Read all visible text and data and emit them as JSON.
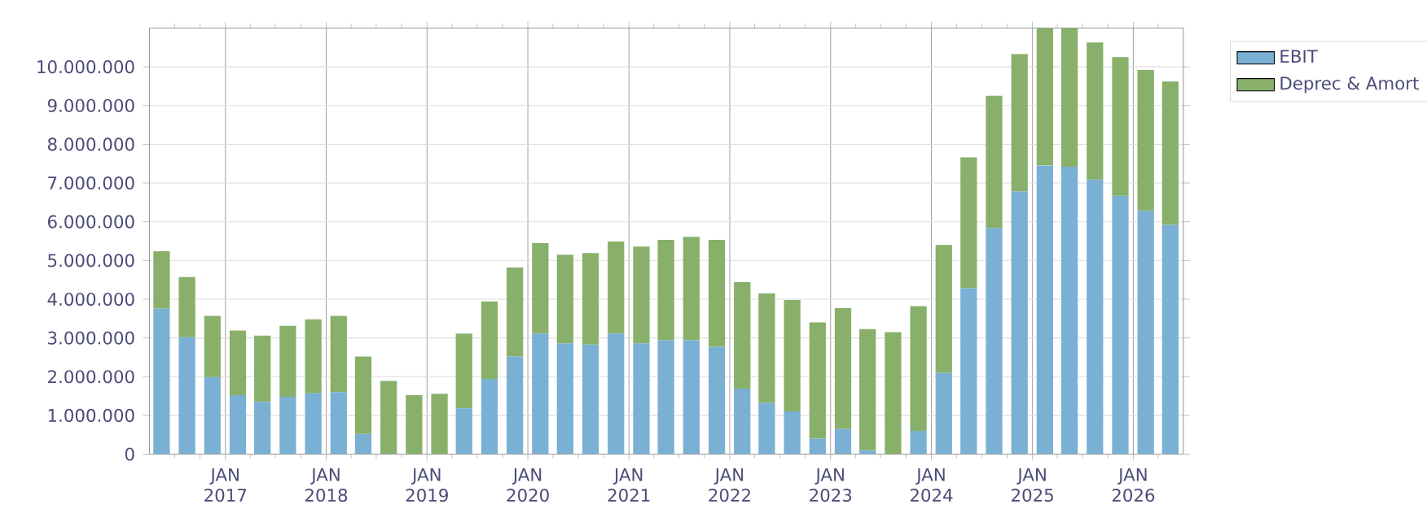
{
  "chart_data": {
    "type": "bar",
    "stacked": true,
    "x": [
      "2016-05-15",
      "2016-08-15",
      "2016-11-15",
      "2017-02-15",
      "2017-05-15",
      "2017-08-15",
      "2017-11-15",
      "2018-02-15",
      "2018-05-15",
      "2018-08-15",
      "2018-11-15",
      "2019-02-15",
      "2019-05-15",
      "2019-08-15",
      "2019-11-15",
      "2020-02-15",
      "2020-05-15",
      "2020-08-15",
      "2020-11-15",
      "2021-02-15",
      "2021-05-15",
      "2021-08-15",
      "2021-11-15",
      "2022-02-15",
      "2022-05-15",
      "2022-08-15",
      "2022-11-15",
      "2023-02-15",
      "2023-05-15",
      "2023-08-15",
      "2023-11-15",
      "2024-02-15",
      "2024-05-15",
      "2024-08-15",
      "2024-11-15",
      "2025-02-15",
      "2025-05-15",
      "2025-08-15",
      "2025-11-15",
      "2026-02-15",
      "2026-05-15"
    ],
    "series": [
      {
        "name": "EBIT",
        "color": "#7ab0d4",
        "values": [
          3760000,
          3020000,
          1990000,
          1520000,
          1350000,
          1480000,
          1570000,
          1600000,
          520000,
          0,
          0,
          0,
          1180000,
          1940000,
          2520000,
          3110000,
          2860000,
          2830000,
          3110000,
          2860000,
          2940000,
          2940000,
          2770000,
          1690000,
          1320000,
          1100000,
          400000,
          650000,
          100000,
          0,
          600000,
          2100000,
          4280000,
          5840000,
          6780000,
          7450000,
          7420000,
          7090000,
          6670000,
          6280000,
          5920000
        ]
      },
      {
        "name": "Deprec & Amort",
        "color": "#88b06a",
        "values": [
          1480000,
          1550000,
          1580000,
          1670000,
          1710000,
          1830000,
          1910000,
          1970000,
          2000000,
          1890000,
          1520000,
          1560000,
          1930000,
          2000000,
          2300000,
          2340000,
          2290000,
          2360000,
          2380000,
          2500000,
          2590000,
          2670000,
          2760000,
          2750000,
          2830000,
          2880000,
          3000000,
          3120000,
          3130000,
          3150000,
          3220000,
          3300000,
          3380000,
          3410000,
          3550000,
          3550000,
          3580000,
          3540000,
          3580000,
          3640000,
          3700000
        ]
      }
    ],
    "xlim": [
      "2016-04-01",
      "2026-07-01"
    ],
    "xticks": [
      {
        "value": "2016-07-01",
        "label": null
      },
      {
        "value": "2016-10-01",
        "label": null
      },
      {
        "value": "2017-01-01",
        "label": "JAN 2017"
      },
      {
        "value": "2017-04-01",
        "label": null
      },
      {
        "value": "2017-07-01",
        "label": null
      },
      {
        "value": "2017-10-01",
        "label": null
      },
      {
        "value": "2018-01-01",
        "label": "JAN 2018"
      },
      {
        "value": "2018-04-01",
        "label": null
      },
      {
        "value": "2018-07-01",
        "label": null
      },
      {
        "value": "2018-10-01",
        "label": null
      },
      {
        "value": "2019-01-01",
        "label": "JAN 2019"
      },
      {
        "value": "2019-04-01",
        "label": null
      },
      {
        "value": "2019-07-01",
        "label": null
      },
      {
        "value": "2019-10-01",
        "label": null
      },
      {
        "value": "2020-01-01",
        "label": "JAN 2020"
      },
      {
        "value": "2020-04-01",
        "label": null
      },
      {
        "value": "2020-07-01",
        "label": null
      },
      {
        "value": "2020-10-01",
        "label": null
      },
      {
        "value": "2021-01-01",
        "label": "JAN 2021"
      },
      {
        "value": "2021-04-01",
        "label": null
      },
      {
        "value": "2021-07-01",
        "label": null
      },
      {
        "value": "2021-10-01",
        "label": null
      },
      {
        "value": "2022-01-01",
        "label": "JAN 2022"
      },
      {
        "value": "2022-04-01",
        "label": null
      },
      {
        "value": "2022-07-01",
        "label": null
      },
      {
        "value": "2022-10-01",
        "label": null
      },
      {
        "value": "2023-01-01",
        "label": "JAN 2023"
      },
      {
        "value": "2023-04-01",
        "label": null
      },
      {
        "value": "2023-07-01",
        "label": null
      },
      {
        "value": "2023-10-01",
        "label": null
      },
      {
        "value": "2024-01-01",
        "label": "JAN 2024"
      },
      {
        "value": "2024-04-01",
        "label": null
      },
      {
        "value": "2024-07-01",
        "label": null
      },
      {
        "value": "2024-10-01",
        "label": null
      },
      {
        "value": "2025-01-01",
        "label": "JAN 2025"
      },
      {
        "value": "2025-04-01",
        "label": null
      },
      {
        "value": "2025-07-01",
        "label": null
      },
      {
        "value": "2025-10-01",
        "label": null
      },
      {
        "value": "2026-01-01",
        "label": "JAN 2026"
      },
      {
        "value": "2026-04-01",
        "label": null
      }
    ],
    "ylim": [
      0,
      11000000
    ],
    "yticks": [
      0,
      {
        "value": 1000000,
        "label": "1.000.000"
      },
      {
        "value": 2000000,
        "label": "2.000.000"
      },
      {
        "value": 3000000,
        "label": "3.000.000"
      },
      {
        "value": 4000000,
        "label": "4.000.000"
      },
      {
        "value": 5000000,
        "label": "5.000.000"
      },
      {
        "value": 6000000,
        "label": "6.000.000"
      },
      {
        "value": 7000000,
        "label": "7.000.000"
      },
      {
        "value": 8000000,
        "label": "8.000.000"
      },
      {
        "value": 9000000,
        "label": "9.000.000"
      },
      {
        "value": 10000000,
        "label": "10.000.000"
      }
    ],
    "grid": true,
    "legend": "top right"
  }
}
